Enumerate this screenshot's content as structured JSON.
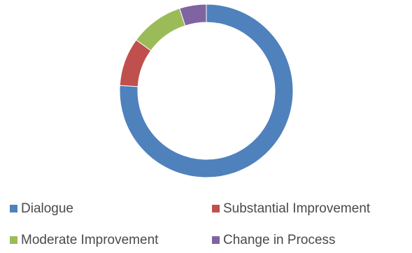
{
  "chart_data": {
    "type": "pie",
    "variant": "donut",
    "title": "",
    "categories": [
      "Dialogue",
      "Substantial Improvement",
      "Moderate Improvement",
      "Change in Process"
    ],
    "values": [
      76,
      9,
      10,
      5
    ],
    "colors": [
      "#4f81bd",
      "#c0504d",
      "#9bbb59",
      "#8064a2"
    ],
    "legend_position": "bottom",
    "start_angle_deg": 0,
    "direction": "clockwise"
  }
}
